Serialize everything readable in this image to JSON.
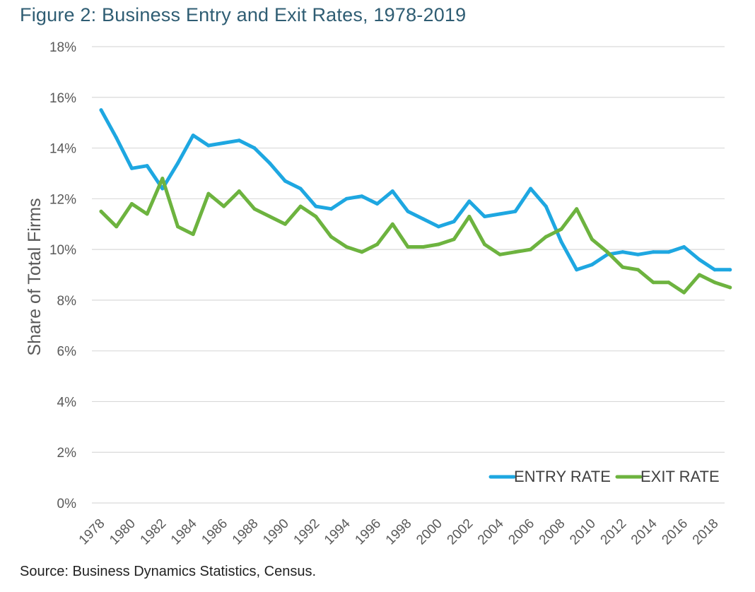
{
  "figure": {
    "title": "Figure 2: Business Entry and Exit Rates, 1978-2019",
    "source": "Source: Business Dynamics Statistics, Census."
  },
  "chart_data": {
    "type": "line",
    "ylabel": "Share of Total Firms",
    "xlabel": "",
    "ylim": [
      0,
      18
    ],
    "y_ticks": [
      "0%",
      "2%",
      "4%",
      "6%",
      "8%",
      "10%",
      "12%",
      "14%",
      "16%",
      "18%"
    ],
    "x_tick_labels": [
      "1978",
      "1980",
      "1982",
      "1984",
      "1986",
      "1988",
      "1990",
      "1992",
      "1994",
      "1996",
      "1998",
      "2000",
      "2002",
      "2004",
      "2006",
      "2008",
      "2010",
      "2012",
      "2014",
      "2016",
      "2018"
    ],
    "x": [
      1978,
      1979,
      1980,
      1981,
      1982,
      1983,
      1984,
      1985,
      1986,
      1987,
      1988,
      1989,
      1990,
      1991,
      1992,
      1993,
      1994,
      1995,
      1996,
      1997,
      1998,
      1999,
      2000,
      2001,
      2002,
      2003,
      2004,
      2005,
      2006,
      2007,
      2008,
      2009,
      2010,
      2011,
      2012,
      2013,
      2014,
      2015,
      2016,
      2017,
      2018,
      2019
    ],
    "grid": true,
    "legend_position": "bottom-right",
    "series": [
      {
        "name": "ENTRY RATE",
        "color": "#1ea7e1",
        "values": [
          15.5,
          14.4,
          13.2,
          13.3,
          12.4,
          13.4,
          14.5,
          14.1,
          14.2,
          14.3,
          14.0,
          13.4,
          12.7,
          12.4,
          11.7,
          11.6,
          12.0,
          12.1,
          11.8,
          12.3,
          11.5,
          11.2,
          10.9,
          11.1,
          11.9,
          11.3,
          11.4,
          11.5,
          12.4,
          11.7,
          10.3,
          9.2,
          9.4,
          9.8,
          9.9,
          9.8,
          9.9,
          9.9,
          10.1,
          9.6,
          9.2,
          9.2
        ]
      },
      {
        "name": "EXIT RATE",
        "color": "#6db33f",
        "values": [
          11.5,
          10.9,
          11.8,
          11.4,
          12.8,
          10.9,
          10.6,
          12.2,
          11.7,
          12.3,
          11.6,
          11.3,
          11.0,
          11.7,
          11.3,
          10.5,
          10.1,
          9.9,
          10.2,
          11.0,
          10.1,
          10.1,
          10.2,
          10.4,
          11.3,
          10.2,
          9.8,
          9.9,
          10.0,
          10.5,
          10.8,
          11.6,
          10.4,
          9.9,
          9.3,
          9.2,
          8.7,
          8.7,
          8.3,
          9.0,
          8.7,
          8.5
        ]
      }
    ]
  }
}
